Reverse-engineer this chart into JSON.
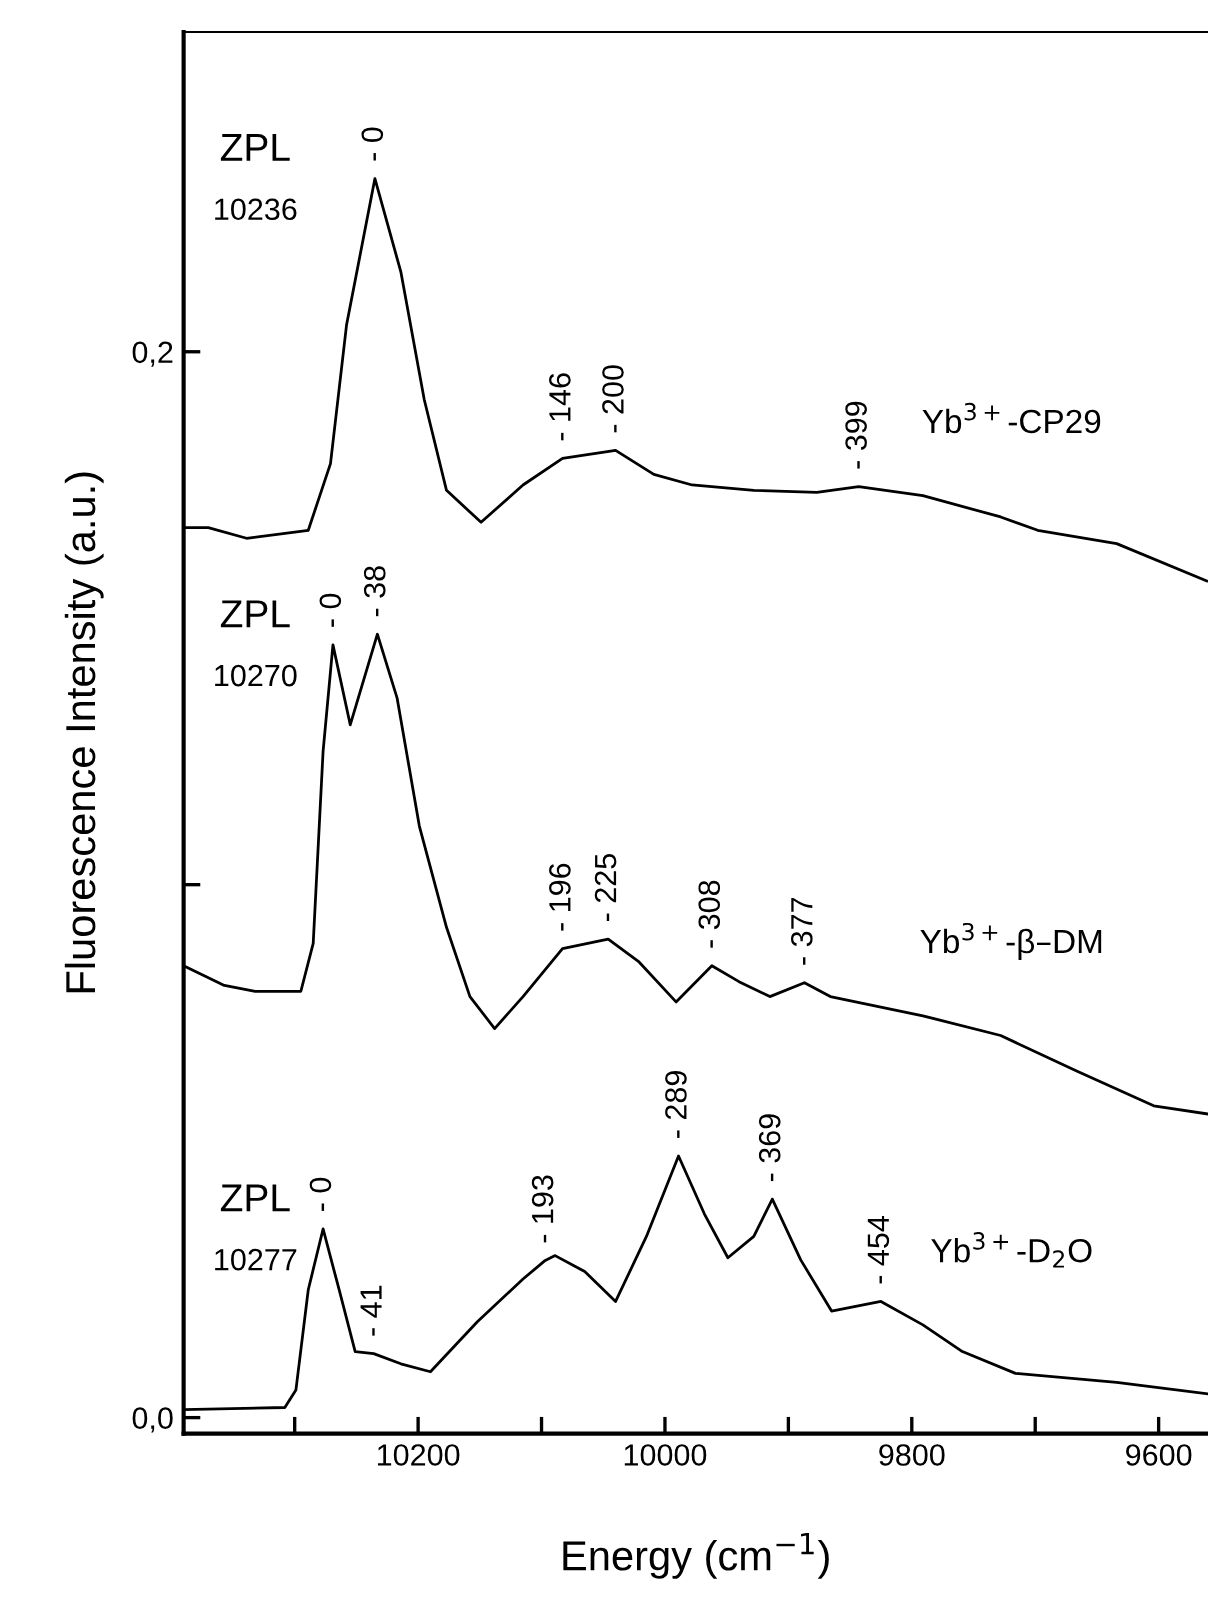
{
  "chart_data": {
    "type": "line",
    "xlabel": "Energy (cm$^{−1}$)",
    "ylabel": "Fluorescence Intensity (a.u.)",
    "xlim": [
      10390,
      9560
    ],
    "ylim": [
      -0.003,
      0.26
    ],
    "xticks": [
      {
        "value": 10300,
        "label": null
      },
      10200,
      {
        "value": 10100,
        "label": null
      },
      10000,
      {
        "value": 9900,
        "label": null
      },
      9800,
      {
        "value": 9700,
        "label": null
      },
      9600
    ],
    "yticks": [
      {
        "value": 0,
        "label": "0,0"
      },
      {
        "value": 0.1,
        "label": null
      },
      {
        "value": 0.2,
        "label": "0,2"
      }
    ],
    "grid": false,
    "legend": false,
    "marker": "none",
    "line_style": "solid",
    "series": [
      {
        "name": "Yb$^{3+}$-CP29",
        "color": "#000000",
        "x": [
          10390,
          10370,
          10339,
          10289,
          10271,
          10258,
          10235,
          10214,
          10195,
          10177,
          10149,
          10115,
          10083,
          10040,
          10009,
          9978,
          9928,
          9877,
          9843,
          9791,
          9728,
          9698,
          9634,
          9561
        ],
        "values": [
          0.167,
          0.167,
          0.165,
          0.1665,
          0.179,
          0.205,
          0.2325,
          0.215,
          0.191,
          0.174,
          0.168,
          0.175,
          0.18,
          0.1815,
          0.177,
          0.175,
          0.174,
          0.1736,
          0.1747,
          0.173,
          0.169,
          0.1665,
          0.164,
          0.157
        ]
      },
      {
        "name": "Yb$^{3+}$-β–DM",
        "color": "#000000",
        "x": [
          10390,
          10357,
          10332,
          10295,
          10285,
          10277,
          10269,
          10255,
          10233,
          10217,
          10199,
          10177,
          10158,
          10138,
          10115,
          10083,
          10046,
          10021,
          9991,
          9962,
          9940,
          9915,
          9887,
          9866,
          9791,
          9728,
          9666,
          9604,
          9561
        ],
        "values": [
          0.0848,
          0.0811,
          0.08,
          0.08,
          0.089,
          0.125,
          0.145,
          0.13,
          0.147,
          0.135,
          0.111,
          0.092,
          0.079,
          0.073,
          0.079,
          0.088,
          0.0898,
          0.0855,
          0.078,
          0.0848,
          0.0818,
          0.079,
          0.0816,
          0.079,
          0.0754,
          0.0717,
          0.065,
          0.0585,
          0.057
        ]
      },
      {
        "name": "Yb$^{3+}$-D$_{2}$O",
        "color": "#000000",
        "x": [
          10390,
          10308,
          10299,
          10289,
          10277,
          10264,
          10251,
          10236,
          10214,
          10190,
          10152,
          10115,
          10097,
          10089,
          10065,
          10040,
          10015,
          9989,
          9968,
          9949,
          9928,
          9913,
          9890,
          9865,
          9825,
          9791,
          9759,
          9716,
          9634,
          9561
        ],
        "values": [
          0.0015,
          0.0019,
          0.0052,
          0.024,
          0.0354,
          0.024,
          0.0124,
          0.012,
          0.0101,
          0.0086,
          0.018,
          0.026,
          0.0295,
          0.0304,
          0.0274,
          0.0218,
          0.034,
          0.0491,
          0.0382,
          0.03,
          0.034,
          0.041,
          0.0296,
          0.02,
          0.0218,
          0.0174,
          0.0124,
          0.0083,
          0.0066,
          0.0045
        ]
      }
    ],
    "annotations": [
      "ZPL",
      "10236",
      "ZPL",
      "10270",
      "ZPL",
      "10277",
      {
        "text": "- 0",
        "x": 10235,
        "y": 0.2325
      },
      {
        "text": "- 146",
        "x": 10083,
        "y": 0.18
      },
      {
        "text": "- 200",
        "x": 10040,
        "y": 0.1815
      },
      {
        "text": "- 399",
        "x": 9843,
        "y": 0.1747
      },
      {
        "text": "- 0",
        "x": 10269,
        "y": 0.145
      },
      {
        "text": "- 38",
        "x": 10233,
        "y": 0.147
      },
      {
        "text": "- 196",
        "x": 10083,
        "y": 0.088
      },
      {
        "text": "- 225",
        "x": 10046,
        "y": 0.0898
      },
      {
        "text": "- 308",
        "x": 9962,
        "y": 0.0848
      },
      {
        "text": "- 377",
        "x": 9887,
        "y": 0.0816
      },
      {
        "text": "- 0",
        "x": 10277,
        "y": 0.0354
      },
      {
        "text": "- 41",
        "x": 10236,
        "y": 0.012
      },
      {
        "text": "- 193",
        "x": 10097,
        "y": 0.0295
      },
      {
        "text": "- 289",
        "x": 9989,
        "y": 0.0491
      },
      {
        "text": "- 369",
        "x": 9913,
        "y": 0.041
      },
      {
        "text": "- 454",
        "x": 9825,
        "y": 0.0218
      }
    ]
  }
}
